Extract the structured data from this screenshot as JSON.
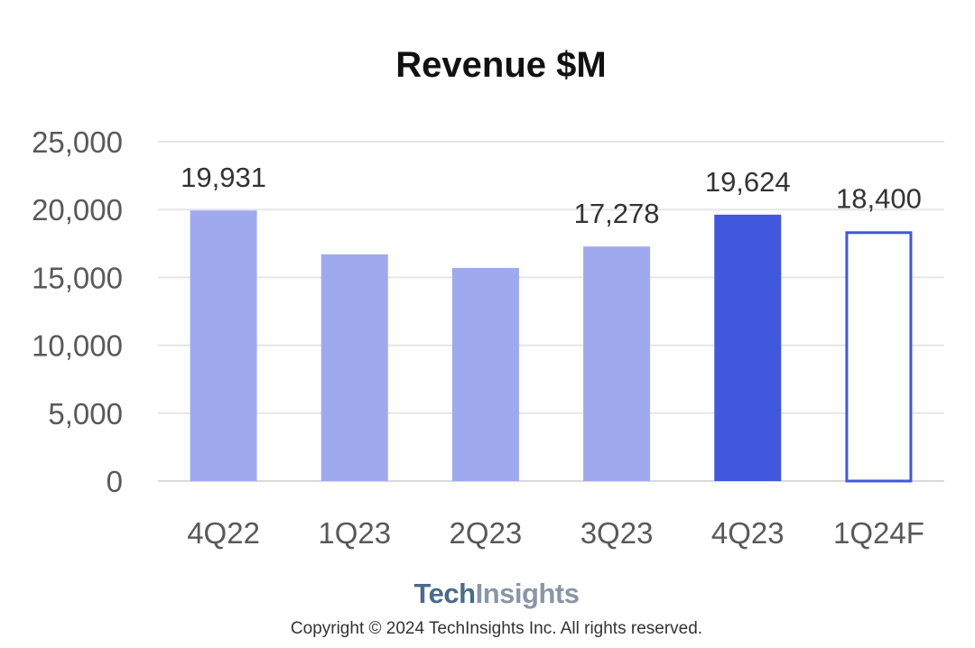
{
  "chart_data": {
    "type": "bar",
    "title": "Revenue $M",
    "xlabel": "",
    "ylabel": "",
    "categories": [
      "4Q22",
      "1Q23",
      "2Q23",
      "3Q23",
      "4Q23",
      "1Q24F"
    ],
    "values": [
      19931,
      16700,
      15700,
      17278,
      19624,
      18400
    ],
    "data_labels": [
      "19,931",
      "",
      "",
      "17,278",
      "19,624",
      "18,400"
    ],
    "ylim": [
      0,
      25000
    ],
    "yticks": [
      0,
      5000,
      10000,
      15000,
      20000,
      25000
    ],
    "ytick_labels": [
      "0",
      "5,000",
      "10,000",
      "15,000",
      "20,000",
      "25,000"
    ],
    "grid": true,
    "bar_styles": [
      "light",
      "light",
      "light",
      "light",
      "dark",
      "outline"
    ],
    "colors": {
      "light": "#9eaaed",
      "dark": "#4058dc",
      "outline": "#4058dc",
      "grid": "#e6e6e6",
      "axis_text": "#595959"
    }
  },
  "footer": {
    "logo_part1": "Tech",
    "logo_part2": "Insights",
    "copyright": "Copyright © 2024 TechInsights Inc.  All rights reserved."
  }
}
